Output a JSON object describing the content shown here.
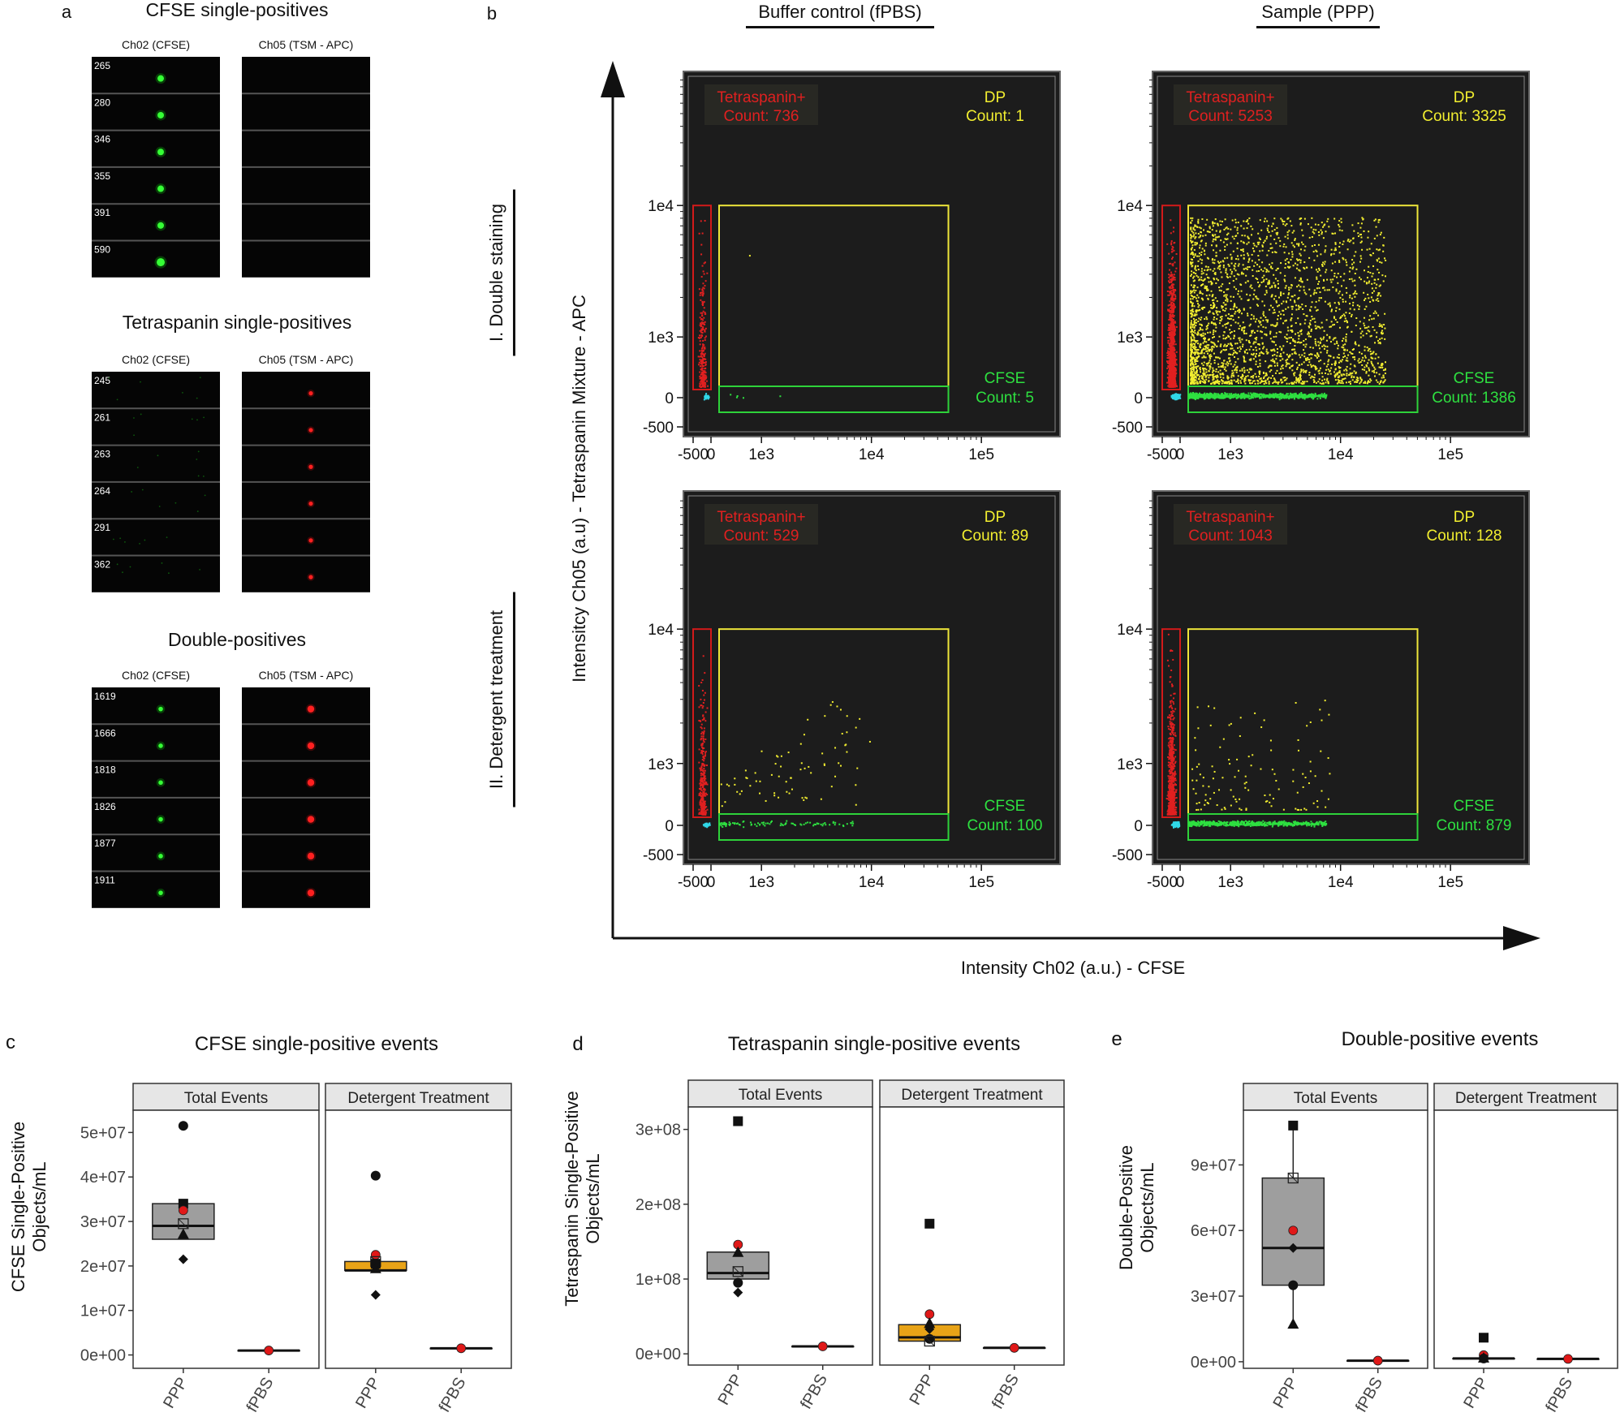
{
  "panel_a": {
    "letter": "a",
    "groups": [
      {
        "title": "CFSE single-positives",
        "ch02_label": "Ch02 (CFSE)",
        "ch05_label": "Ch05 (TSM - APC)",
        "ids": [
          "265",
          "280",
          "346",
          "355",
          "391",
          "590"
        ],
        "ch02_spot": [
          1,
          1,
          1,
          1,
          1,
          1
        ],
        "ch05_spot": [
          0,
          0,
          0,
          0,
          0,
          0
        ]
      },
      {
        "title": "Tetraspanin single-positives",
        "ch02_label": "Ch02 (CFSE)",
        "ch05_label": "Ch05 (TSM - APC)",
        "ids": [
          "245",
          "261",
          "263",
          "264",
          "291",
          "362"
        ],
        "ch02_spot": [
          0,
          0,
          0,
          0,
          0,
          0
        ],
        "ch05_spot": [
          1,
          1,
          1,
          1,
          1,
          1
        ]
      },
      {
        "title": "Double-positives",
        "ch02_label": "Ch02 (CFSE)",
        "ch05_label": "Ch05 (TSM - APC)",
        "ids": [
          "1619",
          "1666",
          "1818",
          "1826",
          "1877",
          "1911"
        ],
        "ch02_spot": [
          1,
          1,
          1,
          1,
          1,
          1
        ],
        "ch05_spot": [
          1,
          1,
          1,
          1,
          1,
          1
        ]
      }
    ]
  },
  "panel_b": {
    "letter": "b",
    "col_headers": [
      "Buffer control (fPBS)",
      "Sample (PPP)"
    ],
    "row_labels": [
      "I. Double staining",
      "II. Detergent treatment"
    ],
    "y_axis_label": "Intensitcy Ch05 (a.u) - Tetraspanin Mixture - APC",
    "x_axis_label": "Intensity Ch02 (a.u.) - CFSE",
    "x_ticks": [
      "-500",
      "0",
      "1e3",
      "1e4",
      "1e5"
    ],
    "y_ticks": [
      "1e4",
      "1e3",
      "0",
      "-500"
    ],
    "colors": {
      "tetraspanin": "#e02020",
      "dp": "#f2ee30",
      "cfse": "#2ee040",
      "negative": "#30d8e8",
      "plot_bg": "#1c1c1c"
    },
    "plots": [
      {
        "tet_label": "Tetraspanin+",
        "tet_count": "Count: 736",
        "dp_label": "DP",
        "dp_count": "Count: 1",
        "cfse_label": "CFSE",
        "cfse_count": "Count: 5"
      },
      {
        "tet_label": "Tetraspanin+",
        "tet_count": "Count: 5253",
        "dp_label": "DP",
        "dp_count": "Count: 3325",
        "cfse_label": "CFSE",
        "cfse_count": "Count: 1386"
      },
      {
        "tet_label": "Tetraspanin+",
        "tet_count": "Count: 529",
        "dp_label": "DP",
        "dp_count": "Count: 89",
        "cfse_label": "CFSE",
        "cfse_count": "Count: 100"
      },
      {
        "tet_label": "Tetraspanin+",
        "tet_count": "Count: 1043",
        "dp_label": "DP",
        "dp_count": "Count: 128",
        "cfse_label": "CFSE",
        "cfse_count": "Count: 879"
      }
    ]
  },
  "chart_data": [
    {
      "type": "box",
      "letter": "c",
      "title": "CFSE single-positive events",
      "ylabel": "CFSE Single-Positive Objects/mL",
      "ylim": [
        -3000000,
        55000000
      ],
      "y_ticks": [
        0,
        10000000,
        20000000,
        30000000,
        40000000,
        50000000
      ],
      "y_tick_labels": [
        "0e+00",
        "1e+07",
        "2e+07",
        "3e+07",
        "4e+07",
        "5e+07"
      ],
      "facets": [
        "Total Events",
        "Detergent Treatment"
      ],
      "categories": [
        "PPP",
        "fPBS"
      ],
      "groups": [
        {
          "facet": 0,
          "cat": 0,
          "fill": "#9e9e9e",
          "q1": 26000000,
          "median": 29000000,
          "q3": 34000000,
          "whisker_low": 26000000,
          "whisker_high": 34000000,
          "points": [
            {
              "shape": "circle",
              "value": 51500000
            },
            {
              "shape": "square",
              "value": 34000000
            },
            {
              "shape": "redcircle",
              "value": 32500000
            },
            {
              "shape": "opensquare",
              "value": 29500000
            },
            {
              "shape": "triangle",
              "value": 27000000
            },
            {
              "shape": "diamond",
              "value": 21500000
            }
          ]
        },
        {
          "facet": 0,
          "cat": 1,
          "fill": "#9e9e9e",
          "q1": 1000000,
          "median": 1000000,
          "q3": 1000000,
          "whisker_low": 1000000,
          "whisker_high": 1000000,
          "points": [
            {
              "shape": "redcircle",
              "value": 1000000
            }
          ]
        },
        {
          "facet": 1,
          "cat": 0,
          "fill": "#e8a317",
          "q1": 19000000,
          "median": 19000000,
          "q3": 21000000,
          "whisker_low": 19000000,
          "whisker_high": 21000000,
          "points": [
            {
              "shape": "circle",
              "value": 40300000
            },
            {
              "shape": "redcircle",
              "value": 22500000
            },
            {
              "shape": "opensquare",
              "value": 21000000
            },
            {
              "shape": "square",
              "value": 20500000
            },
            {
              "shape": "triangle",
              "value": 19300000
            },
            {
              "shape": "diamond",
              "value": 13500000
            }
          ]
        },
        {
          "facet": 1,
          "cat": 1,
          "fill": "#e8a317",
          "q1": 1500000,
          "median": 1500000,
          "q3": 1500000,
          "whisker_low": 1500000,
          "whisker_high": 1500000,
          "points": [
            {
              "shape": "redcircle",
              "value": 1500000
            }
          ]
        }
      ]
    },
    {
      "type": "box",
      "letter": "d",
      "title": "Tetraspanin single-positive events",
      "ylabel": "Tetraspanin Single-Positive Objects/mL",
      "ylim": [
        -15000000,
        330000000
      ],
      "y_ticks": [
        0,
        100000000,
        200000000,
        300000000
      ],
      "y_tick_labels": [
        "0e+00",
        "1e+08",
        "2e+08",
        "3e+08"
      ],
      "facets": [
        "Total Events",
        "Detergent Treatment"
      ],
      "categories": [
        "PPP",
        "fPBS"
      ],
      "groups": [
        {
          "facet": 0,
          "cat": 0,
          "fill": "#9e9e9e",
          "q1": 100000000,
          "median": 108000000,
          "q3": 136000000,
          "whisker_low": 100000000,
          "whisker_high": 136000000,
          "points": [
            {
              "shape": "square",
              "value": 311000000
            },
            {
              "shape": "redcircle",
              "value": 146000000
            },
            {
              "shape": "triangle",
              "value": 135000000
            },
            {
              "shape": "opensquare",
              "value": 110000000
            },
            {
              "shape": "circle",
              "value": 95000000
            },
            {
              "shape": "diamond",
              "value": 82000000
            }
          ]
        },
        {
          "facet": 0,
          "cat": 1,
          "fill": "#9e9e9e",
          "q1": 10000000,
          "median": 10000000,
          "q3": 10000000,
          "whisker_low": 10000000,
          "whisker_high": 10000000,
          "points": [
            {
              "shape": "redcircle",
              "value": 10000000
            }
          ]
        },
        {
          "facet": 1,
          "cat": 0,
          "fill": "#e8a317",
          "q1": 17000000,
          "median": 22000000,
          "q3": 39000000,
          "whisker_low": 17000000,
          "whisker_high": 39000000,
          "points": [
            {
              "shape": "square",
              "value": 174000000
            },
            {
              "shape": "redcircle",
              "value": 53000000
            },
            {
              "shape": "triangle",
              "value": 40000000
            },
            {
              "shape": "diamond",
              "value": 33000000
            },
            {
              "shape": "circle",
              "value": 20000000
            },
            {
              "shape": "opensquare",
              "value": 17000000
            }
          ]
        },
        {
          "facet": 1,
          "cat": 1,
          "fill": "#e8a317",
          "q1": 8000000,
          "median": 8000000,
          "q3": 8000000,
          "whisker_low": 8000000,
          "whisker_high": 8000000,
          "points": [
            {
              "shape": "redcircle",
              "value": 8000000
            }
          ]
        }
      ]
    },
    {
      "type": "box",
      "letter": "e",
      "title": "Double-positive events",
      "ylabel": "Double-Positive Objects/mL",
      "ylim": [
        -3000000,
        115000000
      ],
      "y_ticks": [
        0,
        30000000,
        60000000,
        90000000
      ],
      "y_tick_labels": [
        "0e+00",
        "3e+07",
        "6e+07",
        "9e+07"
      ],
      "facets": [
        "Total Events",
        "Detergent Treatment"
      ],
      "categories": [
        "PPP",
        "fPBS"
      ],
      "groups": [
        {
          "facet": 0,
          "cat": 0,
          "fill": "#9e9e9e",
          "q1": 35000000,
          "median": 52000000,
          "q3": 84000000,
          "whisker_low": 17000000,
          "whisker_high": 108000000,
          "points": [
            {
              "shape": "square",
              "value": 108000000
            },
            {
              "shape": "opensquare",
              "value": 84000000
            },
            {
              "shape": "redcircle",
              "value": 60000000
            },
            {
              "shape": "diamond",
              "value": 52000000
            },
            {
              "shape": "circle",
              "value": 35000000
            },
            {
              "shape": "triangle",
              "value": 17000000
            }
          ]
        },
        {
          "facet": 0,
          "cat": 1,
          "fill": "#9e9e9e",
          "q1": 500000,
          "median": 500000,
          "q3": 500000,
          "whisker_low": 500000,
          "whisker_high": 500000,
          "points": [
            {
              "shape": "redcircle",
              "value": 500000
            }
          ]
        },
        {
          "facet": 1,
          "cat": 0,
          "fill": "#e8a317",
          "q1": 1500000,
          "median": 1500000,
          "q3": 1500000,
          "whisker_low": 1500000,
          "whisker_high": 1500000,
          "points": [
            {
              "shape": "square",
              "value": 11000000
            },
            {
              "shape": "redcircle",
              "value": 3000000
            },
            {
              "shape": "triangle",
              "value": 1500000
            },
            {
              "shape": "circle",
              "value": 1500000
            }
          ]
        },
        {
          "facet": 1,
          "cat": 1,
          "fill": "#e8a317",
          "q1": 1300000,
          "median": 1300000,
          "q3": 1300000,
          "whisker_low": 1300000,
          "whisker_high": 1300000,
          "points": [
            {
              "shape": "redcircle",
              "value": 1300000
            }
          ]
        }
      ]
    }
  ]
}
